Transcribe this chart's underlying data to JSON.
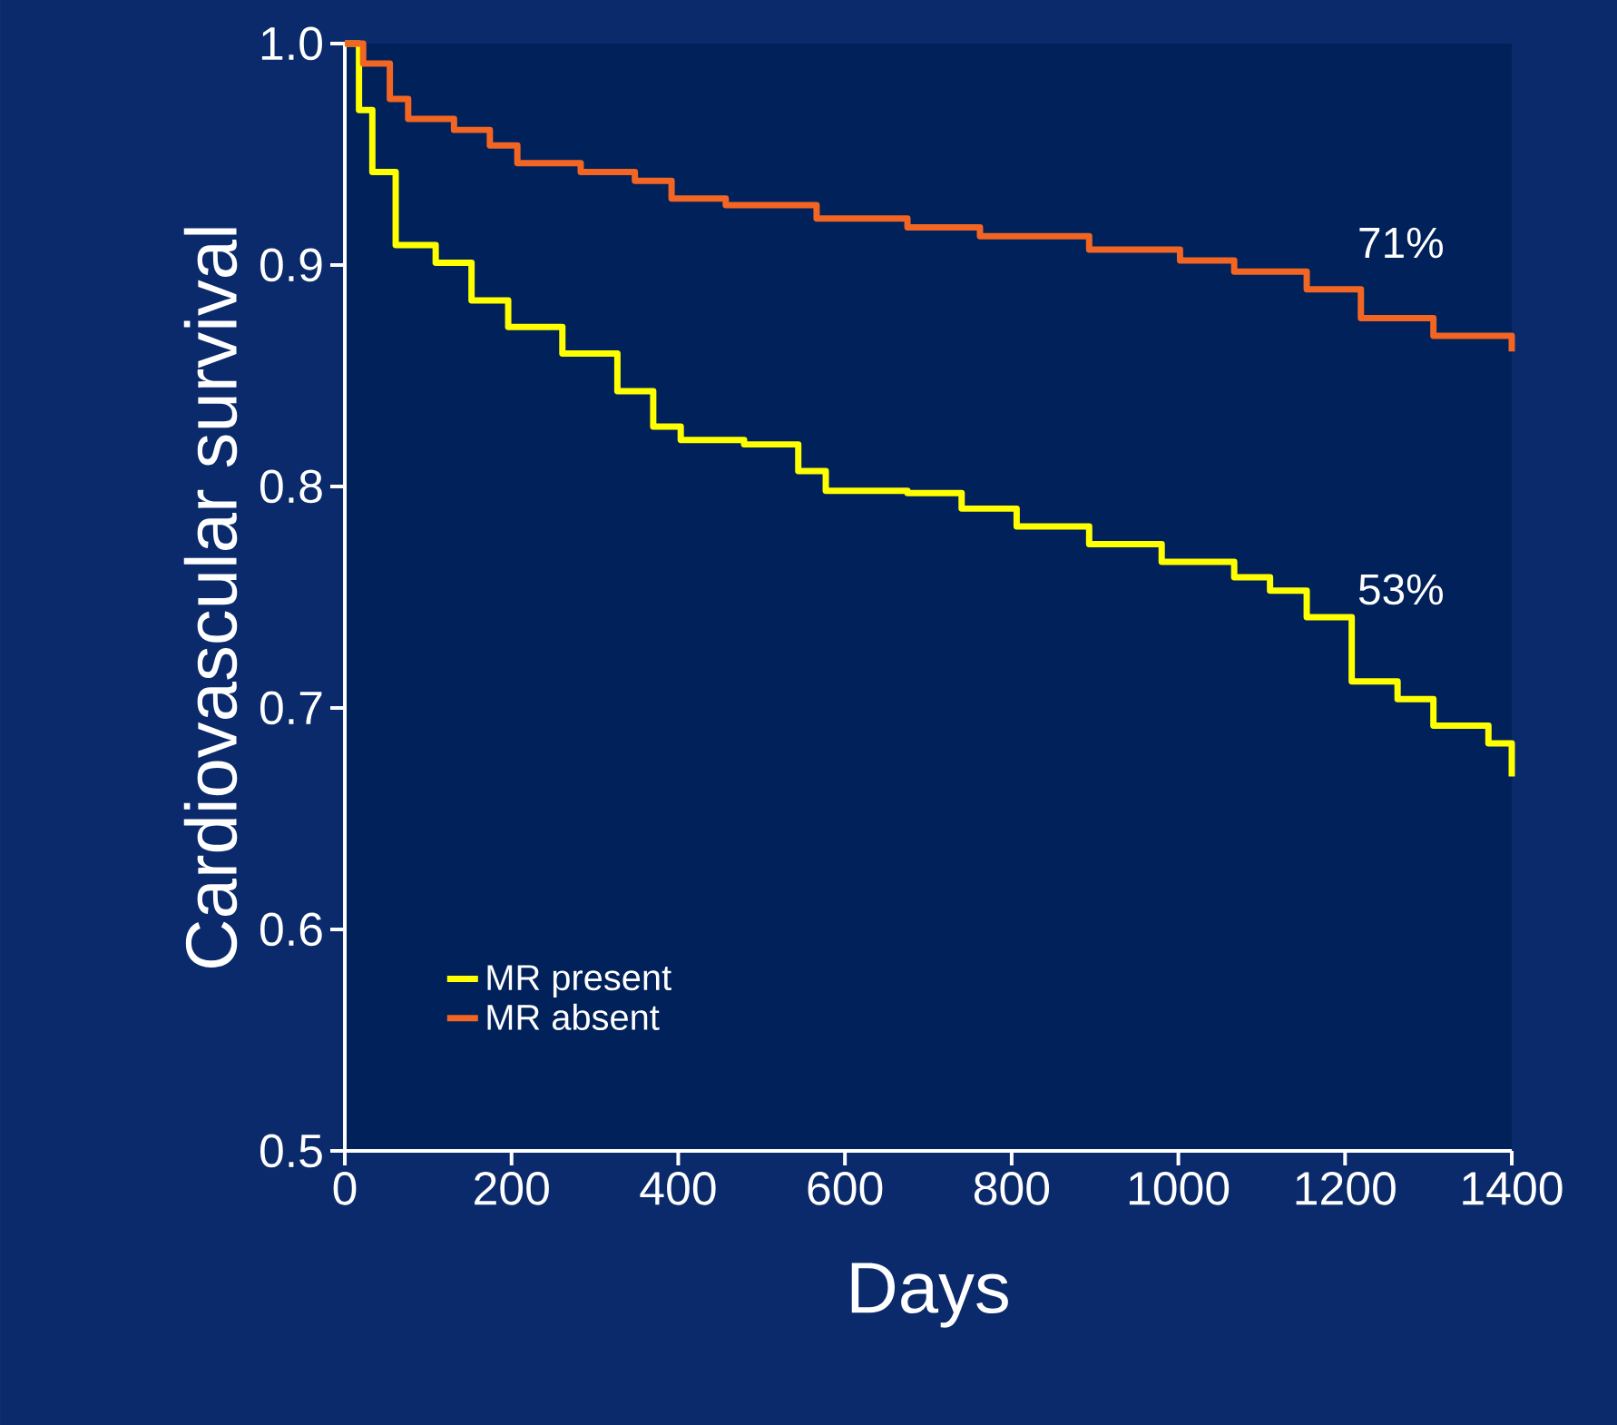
{
  "chart_data": {
    "type": "step",
    "xlabel": "Days",
    "ylabel": "Cardiovascular survival",
    "xlim": [
      0,
      1400
    ],
    "xticks": [
      0,
      200,
      400,
      600,
      800,
      1000,
      1200,
      1400
    ],
    "ylim": [
      0.5,
      1.0
    ],
    "yticks": [
      {
        "value": 0.5,
        "label": "0.5"
      },
      {
        "value": 0.6,
        "label": "0.6"
      },
      {
        "value": 0.7,
        "label": "0.7"
      },
      {
        "value": 0.8,
        "label": "0.8"
      },
      {
        "value": 0.9,
        "label": "0.9"
      },
      {
        "value": 1.0,
        "label": "1.0"
      }
    ],
    "legend": "bottom left",
    "grid": false,
    "series": [
      {
        "name": "MR present",
        "color": "#ffff00",
        "x": [
          0,
          17,
          33,
          61,
          109,
          152,
          196,
          261,
          327,
          370,
          403,
          479,
          544,
          577,
          675,
          740,
          806,
          893,
          980,
          1067,
          1110,
          1154,
          1208,
          1263,
          1306,
          1372,
          1400
        ],
        "values": [
          1.0,
          0.97,
          0.942,
          0.909,
          0.901,
          0.884,
          0.872,
          0.86,
          0.843,
          0.827,
          0.821,
          0.819,
          0.807,
          0.798,
          0.797,
          0.79,
          0.782,
          0.774,
          0.766,
          0.759,
          0.753,
          0.741,
          0.712,
          0.704,
          0.692,
          0.684,
          0.669
        ]
      },
      {
        "name": "MR absent",
        "color": "#f26522",
        "x": [
          0,
          22,
          54,
          76,
          131,
          174,
          207,
          283,
          348,
          392,
          457,
          566,
          675,
          762,
          893,
          1002,
          1067,
          1154,
          1219,
          1306,
          1400
        ],
        "values": [
          1.0,
          0.991,
          0.975,
          0.966,
          0.961,
          0.954,
          0.946,
          0.942,
          0.938,
          0.93,
          0.927,
          0.921,
          0.917,
          0.913,
          0.907,
          0.902,
          0.897,
          0.889,
          0.876,
          0.868,
          0.861
        ]
      }
    ],
    "annotations": [
      "71%",
      "53%"
    ]
  }
}
